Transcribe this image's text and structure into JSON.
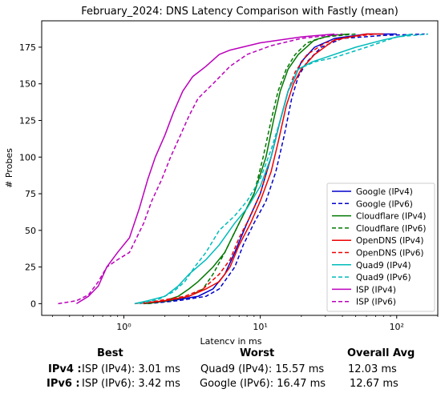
{
  "chart_data": {
    "type": "line",
    "title": "February_2024: DNS Latency Comparison with Fastly (mean)",
    "xlabel": "Latency in ms",
    "ylabel": "# Probes",
    "xscale": "log",
    "xlim": [
      0.25,
      200
    ],
    "ylim": [
      -8,
      193
    ],
    "xticks": [
      1,
      10,
      100
    ],
    "xtick_labels": [
      "10⁰",
      "10¹",
      "10²"
    ],
    "yticks": [
      0,
      25,
      50,
      75,
      100,
      125,
      150,
      175
    ],
    "legend_position": "lower right",
    "grid": false,
    "series": [
      {
        "name": "Google (IPv4)",
        "color": "#0000cc",
        "dash": "solid",
        "points": [
          [
            1.4,
            0
          ],
          [
            2.2,
            2
          ],
          [
            3.5,
            5
          ],
          [
            4.5,
            10
          ],
          [
            5.5,
            20
          ],
          [
            6.5,
            35
          ],
          [
            8,
            55
          ],
          [
            10,
            75
          ],
          [
            12,
            100
          ],
          [
            14,
            125
          ],
          [
            16,
            145
          ],
          [
            18,
            155
          ],
          [
            20,
            165
          ],
          [
            25,
            175
          ],
          [
            35,
            181
          ],
          [
            60,
            184
          ],
          [
            100,
            184
          ]
        ]
      },
      {
        "name": "Google (IPv6)",
        "color": "#0000cc",
        "dash": "dashed",
        "points": [
          [
            1.5,
            0
          ],
          [
            2.5,
            2
          ],
          [
            4,
            5
          ],
          [
            5,
            10
          ],
          [
            6.5,
            25
          ],
          [
            7.5,
            40
          ],
          [
            9,
            55
          ],
          [
            11,
            70
          ],
          [
            13,
            90
          ],
          [
            15,
            115
          ],
          [
            17,
            140
          ],
          [
            19,
            155
          ],
          [
            22,
            165
          ],
          [
            28,
            175
          ],
          [
            40,
            181
          ],
          [
            80,
            183
          ],
          [
            160,
            184
          ]
        ]
      },
      {
        "name": "Cloudflare (IPv4)",
        "color": "#007700",
        "dash": "solid",
        "points": [
          [
            1.5,
            0
          ],
          [
            2,
            2
          ],
          [
            2.5,
            5
          ],
          [
            3,
            10
          ],
          [
            3.5,
            15
          ],
          [
            4.5,
            25
          ],
          [
            5.5,
            35
          ],
          [
            7,
            55
          ],
          [
            9,
            75
          ],
          [
            11,
            100
          ],
          [
            12.5,
            125
          ],
          [
            14,
            145
          ],
          [
            16,
            160
          ],
          [
            19,
            170
          ],
          [
            25,
            180
          ],
          [
            33,
            183
          ],
          [
            45,
            184
          ]
        ]
      },
      {
        "name": "Cloudflare (IPv6)",
        "color": "#007700",
        "dash": "dashed",
        "points": [
          [
            1.4,
            0
          ],
          [
            2.2,
            2
          ],
          [
            3,
            5
          ],
          [
            3.8,
            10
          ],
          [
            4.5,
            20
          ],
          [
            5.5,
            35
          ],
          [
            7,
            55
          ],
          [
            9,
            75
          ],
          [
            10.5,
            100
          ],
          [
            12,
            125
          ],
          [
            13.5,
            145
          ],
          [
            15.5,
            160
          ],
          [
            18,
            170
          ],
          [
            22,
            178
          ],
          [
            30,
            182
          ],
          [
            50,
            184
          ]
        ]
      },
      {
        "name": "OpenDNS (IPv4)",
        "color": "#ee0000",
        "dash": "solid",
        "points": [
          [
            1.3,
            0
          ],
          [
            2,
            2
          ],
          [
            3,
            5
          ],
          [
            4,
            10
          ],
          [
            5,
            15
          ],
          [
            6,
            25
          ],
          [
            7,
            40
          ],
          [
            8.5,
            55
          ],
          [
            10,
            70
          ],
          [
            12,
            90
          ],
          [
            13.5,
            110
          ],
          [
            15.5,
            135
          ],
          [
            17.5,
            150
          ],
          [
            20,
            160
          ],
          [
            25,
            170
          ],
          [
            35,
            180
          ],
          [
            60,
            184
          ],
          [
            80,
            184
          ]
        ]
      },
      {
        "name": "OpenDNS (IPv6)",
        "color": "#ee0000",
        "dash": "dashed",
        "points": [
          [
            1.2,
            0
          ],
          [
            1.8,
            2
          ],
          [
            2.8,
            5
          ],
          [
            3.8,
            10
          ],
          [
            5,
            20
          ],
          [
            6,
            30
          ],
          [
            7,
            45
          ],
          [
            8.5,
            60
          ],
          [
            10,
            75
          ],
          [
            12,
            100
          ],
          [
            14,
            125
          ],
          [
            16,
            145
          ],
          [
            18,
            158
          ],
          [
            22,
            170
          ],
          [
            30,
            178
          ],
          [
            45,
            182
          ],
          [
            70,
            184
          ]
        ]
      },
      {
        "name": "Quad9 (IPv4)",
        "color": "#00bbbb",
        "dash": "solid",
        "points": [
          [
            1.2,
            0
          ],
          [
            1.5,
            2
          ],
          [
            2,
            5
          ],
          [
            2.5,
            12
          ],
          [
            3,
            20
          ],
          [
            4,
            30
          ],
          [
            5,
            40
          ],
          [
            6.5,
            55
          ],
          [
            8,
            65
          ],
          [
            10,
            80
          ],
          [
            12,
            100
          ],
          [
            14,
            125
          ],
          [
            16,
            145
          ],
          [
            19,
            160
          ],
          [
            24,
            165
          ],
          [
            30,
            168
          ],
          [
            50,
            175
          ],
          [
            80,
            180
          ],
          [
            130,
            184
          ]
        ]
      },
      {
        "name": "Quad9 (IPv6)",
        "color": "#00bbbb",
        "dash": "dashed",
        "points": [
          [
            1.3,
            0
          ],
          [
            1.8,
            3
          ],
          [
            2.3,
            8
          ],
          [
            2.8,
            15
          ],
          [
            3.3,
            25
          ],
          [
            4,
            35
          ],
          [
            5,
            50
          ],
          [
            6.5,
            60
          ],
          [
            8,
            70
          ],
          [
            10,
            85
          ],
          [
            12,
            105
          ],
          [
            14,
            125
          ],
          [
            16,
            145
          ],
          [
            19,
            160
          ],
          [
            25,
            165
          ],
          [
            35,
            168
          ],
          [
            60,
            175
          ],
          [
            100,
            182
          ],
          [
            170,
            184
          ]
        ]
      },
      {
        "name": "ISP (IPv4)",
        "color": "#bb00bb",
        "dash": "solid",
        "points": [
          [
            0.45,
            0
          ],
          [
            0.55,
            5
          ],
          [
            0.65,
            12
          ],
          [
            0.75,
            25
          ],
          [
            0.9,
            35
          ],
          [
            1.1,
            45
          ],
          [
            1.3,
            65
          ],
          [
            1.5,
            85
          ],
          [
            1.7,
            100
          ],
          [
            2,
            115
          ],
          [
            2.3,
            130
          ],
          [
            2.7,
            145
          ],
          [
            3.2,
            155
          ],
          [
            4,
            162
          ],
          [
            5,
            170
          ],
          [
            6,
            173
          ],
          [
            10,
            178
          ],
          [
            20,
            182
          ],
          [
            35,
            184
          ]
        ]
      },
      {
        "name": "ISP (IPv6)",
        "color": "#bb00bb",
        "dash": "dashed",
        "points": [
          [
            0.33,
            0
          ],
          [
            0.45,
            2
          ],
          [
            0.55,
            6
          ],
          [
            0.65,
            15
          ],
          [
            0.75,
            25
          ],
          [
            0.9,
            30
          ],
          [
            1.1,
            35
          ],
          [
            1.4,
            55
          ],
          [
            1.6,
            70
          ],
          [
            1.9,
            85
          ],
          [
            2.2,
            100
          ],
          [
            2.6,
            115
          ],
          [
            3,
            128
          ],
          [
            3.5,
            140
          ],
          [
            4.5,
            150
          ],
          [
            6,
            162
          ],
          [
            8,
            170
          ],
          [
            12,
            176
          ],
          [
            20,
            181
          ],
          [
            40,
            184
          ]
        ]
      }
    ]
  },
  "stats": {
    "headers": {
      "best": "Best",
      "worst": "Worst",
      "avg": "Overall Avg"
    },
    "rows": [
      {
        "label": "IPv4 :",
        "best": "ISP (IPv4): 3.01 ms",
        "worst": "Quad9 (IPv4): 15.57 ms",
        "avg": "12.03 ms"
      },
      {
        "label": "IPv6 :",
        "best": "ISP (IPv6): 3.42 ms",
        "worst": "Google (IPv6): 16.47 ms",
        "avg": "12.67 ms"
      }
    ]
  }
}
